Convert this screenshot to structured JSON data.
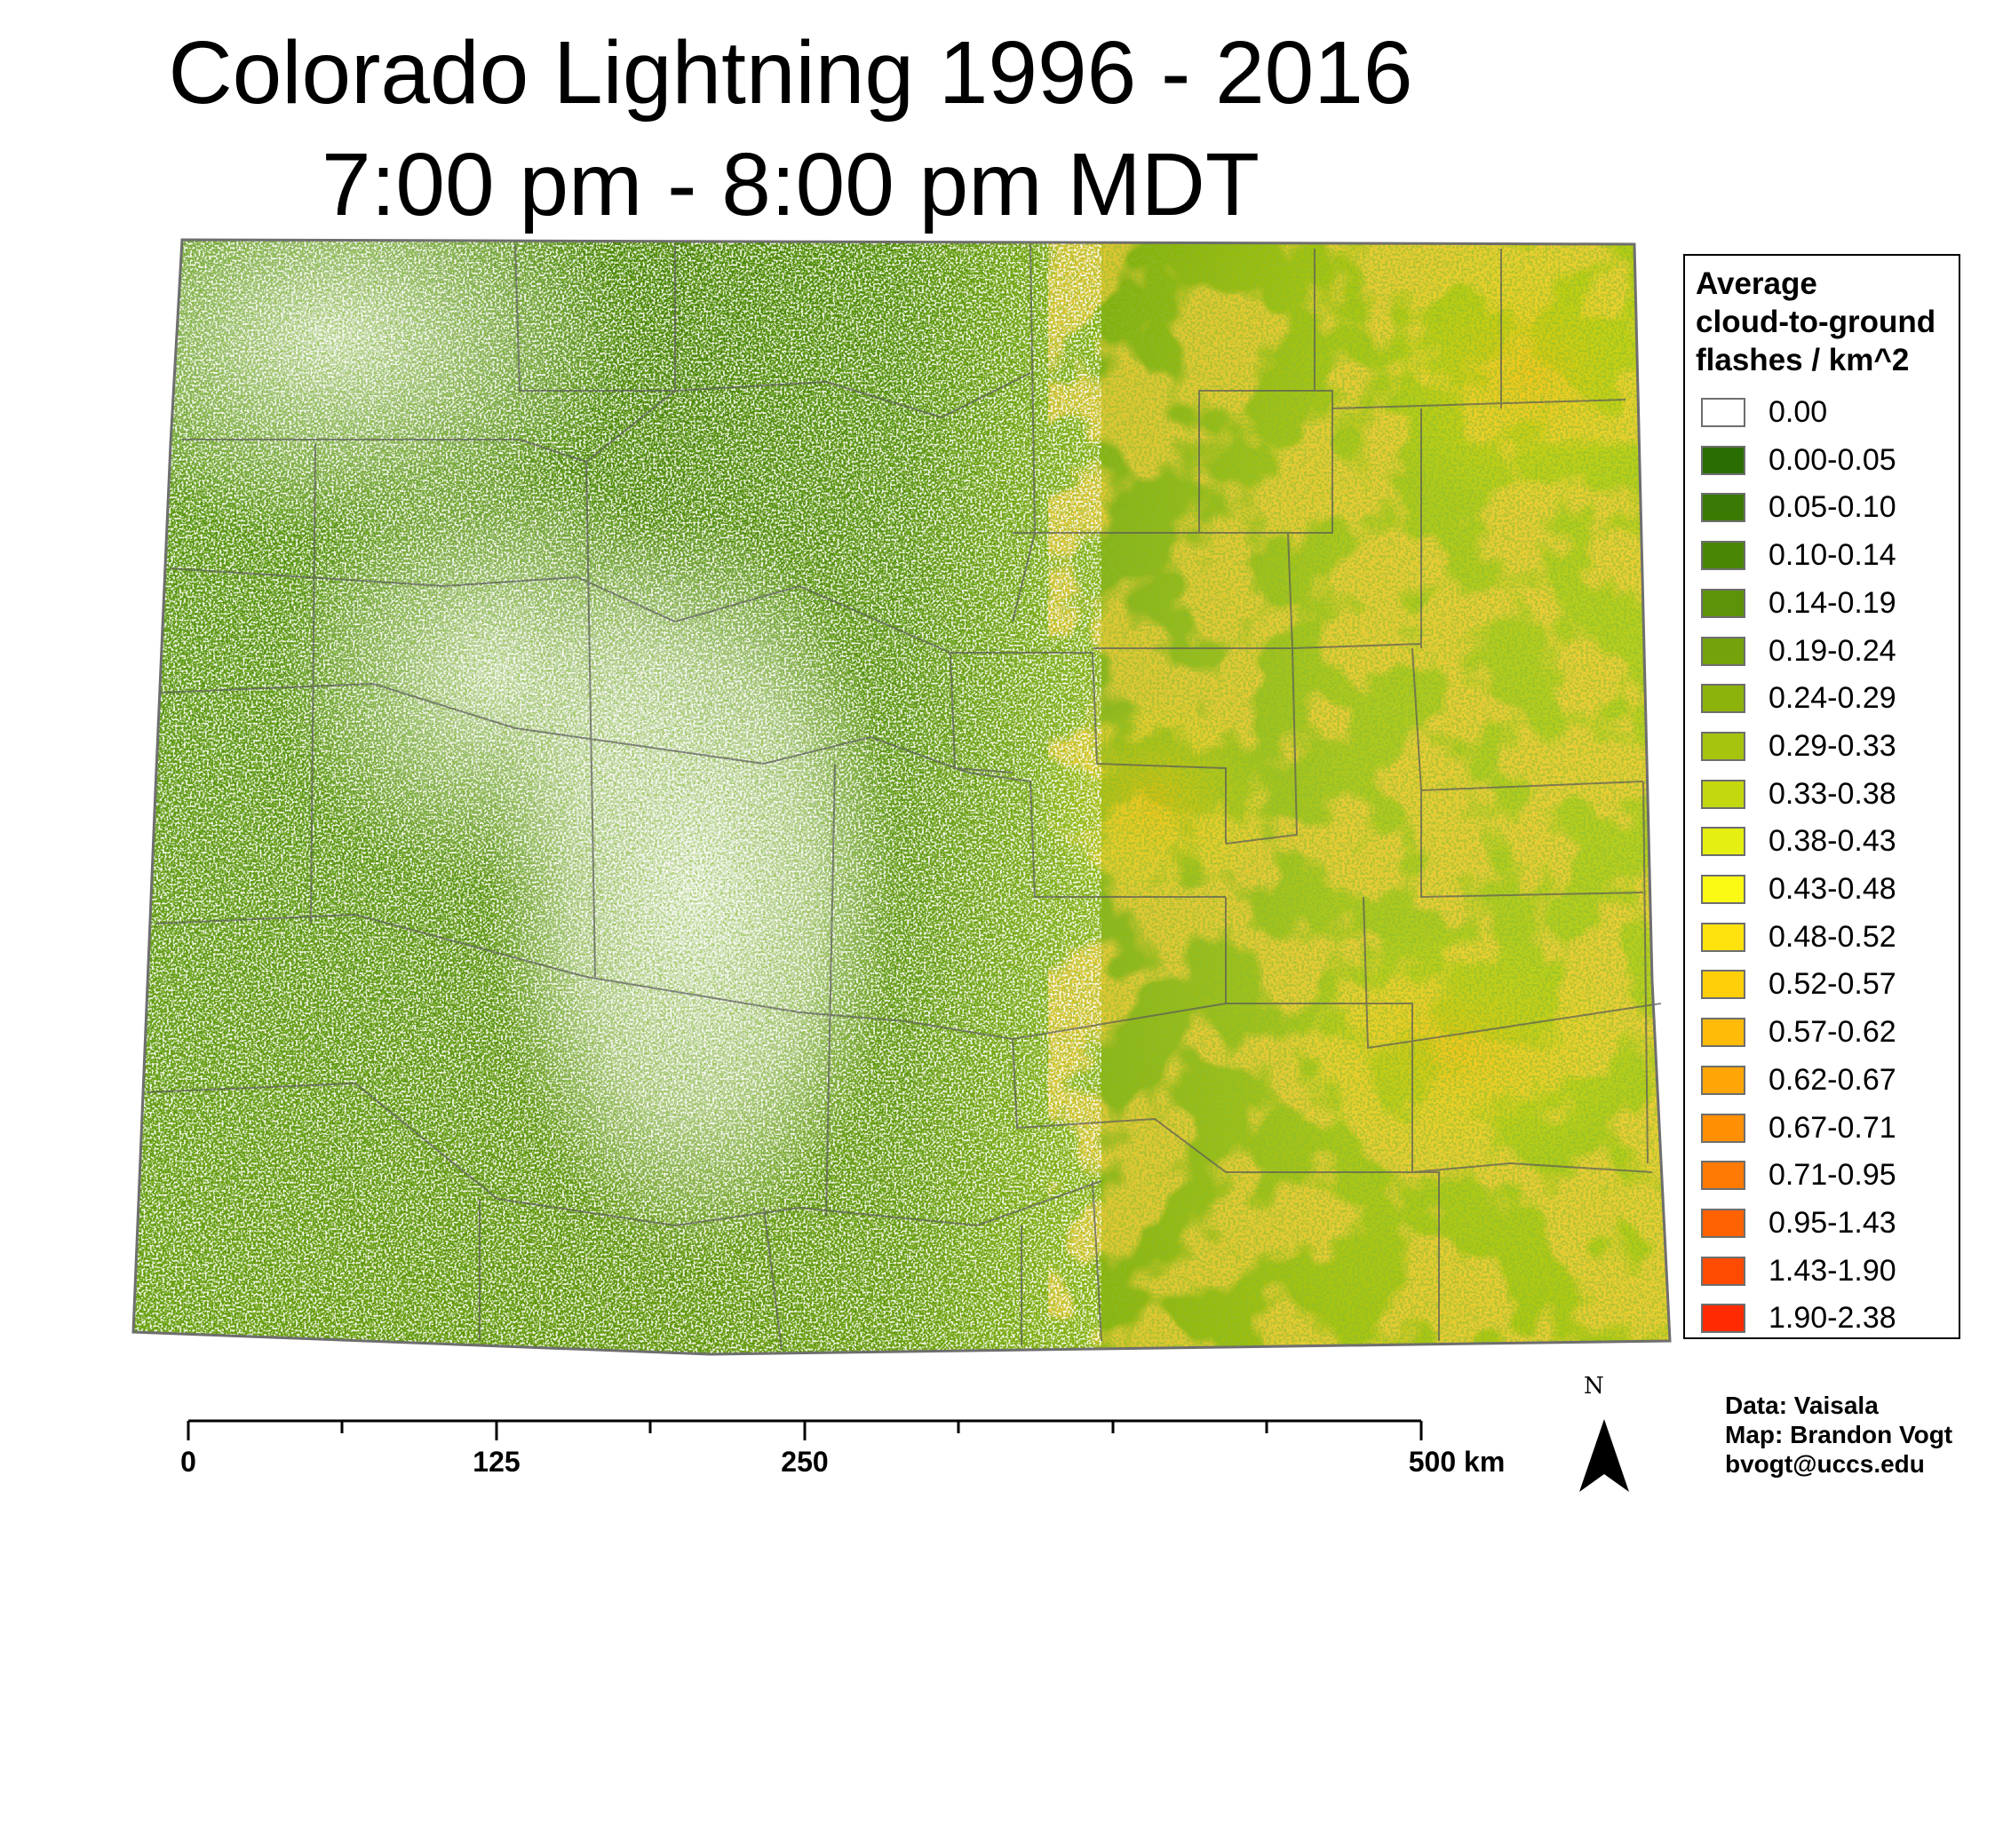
{
  "title": {
    "line1": "Colorado Lightning 1996 - 2016",
    "line2": "7:00 pm - 8:00 pm MDT"
  },
  "legend": {
    "title_lines": [
      "Average",
      "cloud-to-ground",
      "flashes / km^2"
    ],
    "classes": [
      {
        "label": "0.00",
        "color": "#ffffff"
      },
      {
        "label": "0.00-0.05",
        "color": "#2a6e02"
      },
      {
        "label": "0.05-0.10",
        "color": "#3a7a04"
      },
      {
        "label": "0.10-0.14",
        "color": "#4a8606"
      },
      {
        "label": "0.14-0.19",
        "color": "#5c9308"
      },
      {
        "label": "0.19-0.24",
        "color": "#73a20a"
      },
      {
        "label": "0.24-0.29",
        "color": "#8cb30c"
      },
      {
        "label": "0.29-0.33",
        "color": "#a6c40e"
      },
      {
        "label": "0.33-0.38",
        "color": "#c4d810"
      },
      {
        "label": "0.38-0.43",
        "color": "#e5ef12"
      },
      {
        "label": "0.43-0.48",
        "color": "#fafa14"
      },
      {
        "label": "0.48-0.52",
        "color": "#fde20e"
      },
      {
        "label": "0.52-0.57",
        "color": "#ffd00a"
      },
      {
        "label": "0.57-0.62",
        "color": "#ffbb08"
      },
      {
        "label": "0.62-0.67",
        "color": "#ffa606"
      },
      {
        "label": "0.67-0.71",
        "color": "#ff9004"
      },
      {
        "label": "0.71-0.95",
        "color": "#ff7a04"
      },
      {
        "label": "0.95-1.43",
        "color": "#ff6202"
      },
      {
        "label": "1.43-1.90",
        "color": "#ff4a02"
      },
      {
        "label": "1.90-2.38",
        "color": "#ff2a02"
      }
    ]
  },
  "scale_bar": {
    "labels": [
      "0",
      "125",
      "250",
      "500 km"
    ]
  },
  "north_arrow": {
    "letter": "N",
    "icon": "north-arrow-icon"
  },
  "credits": [
    "Data: Vaisala",
    "Map: Brandon Vogt",
    "bvogt@uccs.edu"
  ]
}
